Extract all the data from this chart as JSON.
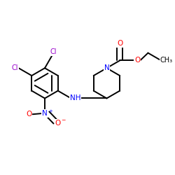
{
  "bg_color": "#ffffff",
  "bond_color": "#000000",
  "bond_width": 1.4,
  "dbo": 0.018,
  "atom_colors": {
    "N": "#0000ff",
    "O": "#ff0000",
    "Cl": "#9900cc"
  },
  "fs": 7.0,
  "xlim": [
    0.0,
    1.0
  ],
  "ylim": [
    0.15,
    0.85
  ]
}
